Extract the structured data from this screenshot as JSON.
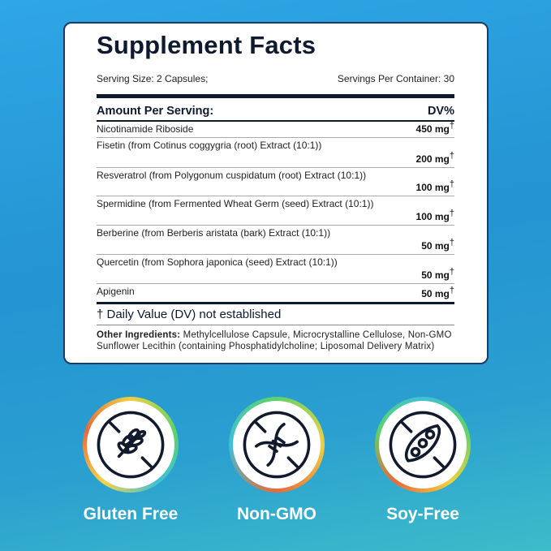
{
  "facts": {
    "title": "Supplement Facts",
    "serving_size": "Serving Size: 2 Capsules;",
    "servings_per_container": "Servings Per Container: 30",
    "header_left": "Amount Per Serving:",
    "header_right": "DV%",
    "rows": [
      {
        "name": "Nicotinamide Riboside",
        "amount": "450 mg",
        "mark": "†"
      },
      {
        "name": "Fisetin (from Cotinus coggygria (root) Extract (10:1))",
        "amount": "200 mg",
        "mark": "†"
      },
      {
        "name": "Resveratrol (from Polygonum cuspidatum (root) Extract (10:1))",
        "amount": "100 mg",
        "mark": "†"
      },
      {
        "name": "Spermidine (from Fermented Wheat Germ (seed) Extract (10:1))",
        "amount": "100 mg",
        "mark": "†"
      },
      {
        "name": "Berberine (from Berberis aristata (bark) Extract (10:1))",
        "amount": "50 mg",
        "mark": "†"
      },
      {
        "name": "Quercetin (from Sophora japonica (seed) Extract (10:1))",
        "amount": "50 mg",
        "mark": "†"
      },
      {
        "name": "Apigenin",
        "amount": "50 mg",
        "mark": "†"
      }
    ],
    "footnote": "† Daily Value (DV) not established",
    "other_label": "Other Ingredients:",
    "other_text": " Methylcellulose Capsule, Microcrystalline Cellulose, Non-GMO Sunflower Lecithin (containing Phosphatidylcholine; Liposomal Delivery Matrix)"
  },
  "badges": [
    {
      "label": "Gluten Free",
      "icon": "wheat-crossed-icon"
    },
    {
      "label": "Non-GMO",
      "icon": "dna-crossed-icon"
    },
    {
      "label": "Soy-Free",
      "icon": "soybean-crossed-icon"
    }
  ]
}
